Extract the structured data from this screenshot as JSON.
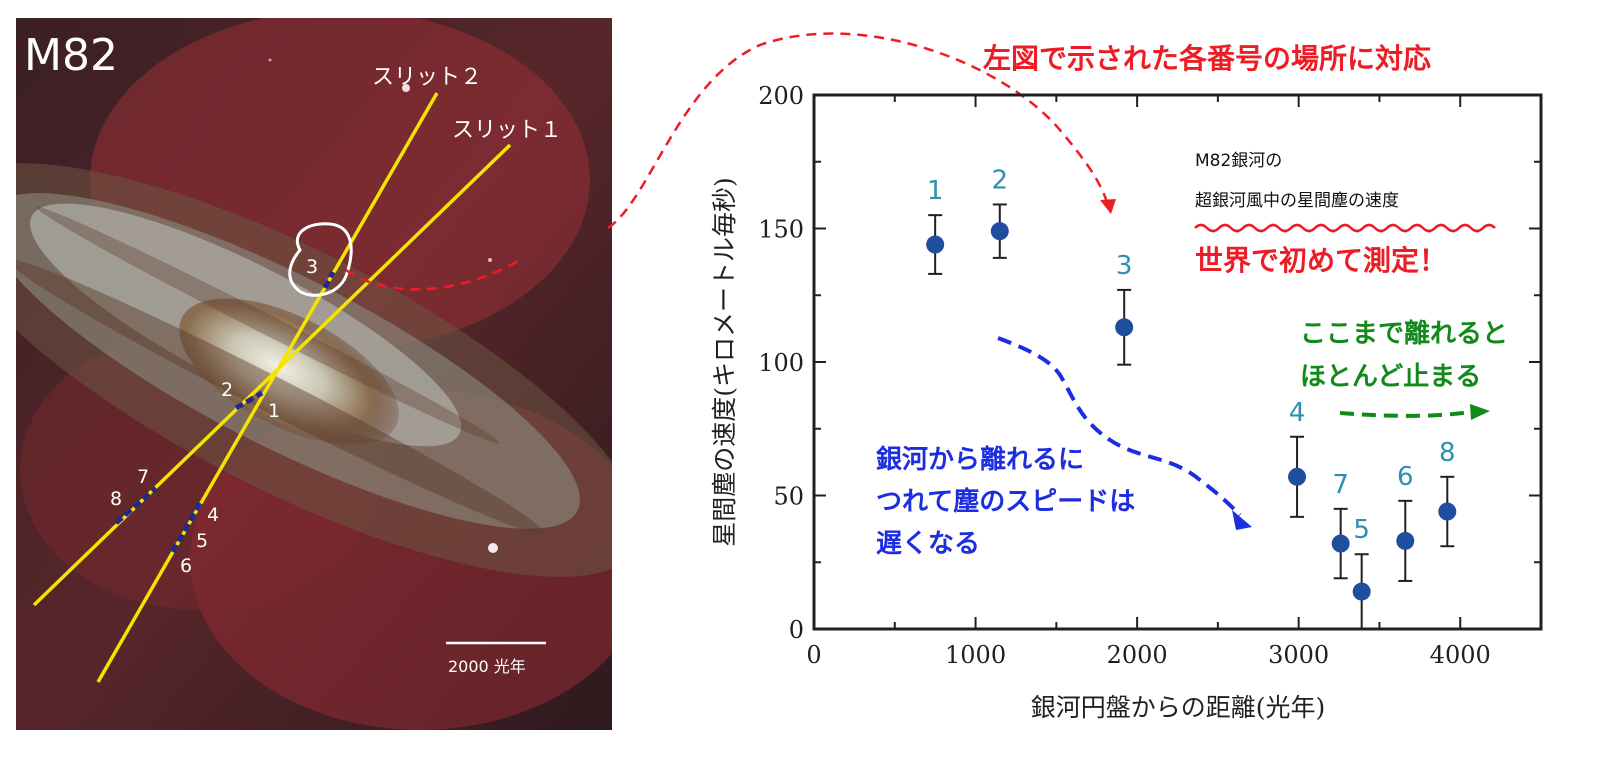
{
  "galaxy_image": {
    "title": "M82",
    "slit2_label": "スリット２",
    "slit1_label": "スリット１",
    "scale_bar_label": "2000 光年",
    "point_labels": [
      "1",
      "2",
      "3",
      "4",
      "5",
      "6",
      "7",
      "8"
    ],
    "circled_point": "3"
  },
  "annotations": {
    "top_red_note": "左図で示された各番号の場所に対応",
    "note_line1": "M82銀河の",
    "note_line2": "超銀河風中の星間塵の速度",
    "red_highlight": "世界で初めて測定！",
    "blue_line1": "銀河から離れるに",
    "blue_line2": "つれて塵のスピードは",
    "blue_line3": "遅くなる",
    "green_line1": "ここまで離れると",
    "green_line2": "ほとんど止まる"
  },
  "colors": {
    "marker": "#1f4e9e",
    "label": "#2f8fb0",
    "red": "#ee1c25",
    "blue": "#1c2ee0",
    "green": "#128a1a",
    "slit": "#f5e400"
  },
  "chart_data": {
    "type": "scatter",
    "title": "",
    "xlabel": "銀河円盤からの距離(光年)",
    "ylabel": "星間塵の速度(キロメートル毎秒)",
    "xlim": [
      0,
      4500
    ],
    "ylim": [
      0,
      200
    ],
    "xticks": [
      0,
      1000,
      2000,
      3000,
      4000
    ],
    "yticks": [
      0,
      50,
      100,
      150,
      200
    ],
    "points": [
      {
        "label": "1",
        "x": 750,
        "y": 144,
        "err": 11
      },
      {
        "label": "2",
        "x": 1150,
        "y": 149,
        "err": 10
      },
      {
        "label": "3",
        "x": 1920,
        "y": 113,
        "err": 14
      },
      {
        "label": "4",
        "x": 2990,
        "y": 57,
        "err": 15
      },
      {
        "label": "7",
        "x": 3260,
        "y": 32,
        "err": 13
      },
      {
        "label": "5",
        "x": 3390,
        "y": 14,
        "err": 14
      },
      {
        "label": "6",
        "x": 3660,
        "y": 33,
        "err": 15
      },
      {
        "label": "8",
        "x": 3920,
        "y": 44,
        "err": 13
      }
    ]
  }
}
